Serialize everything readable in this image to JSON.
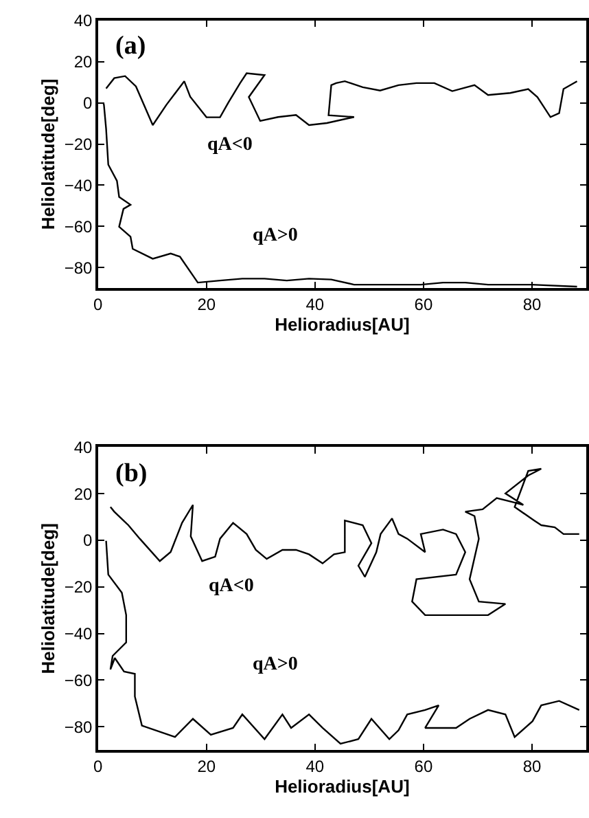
{
  "chart_data": [
    {
      "type": "line",
      "title": "(a)",
      "xlabel": "Helioradius[AU]",
      "ylabel": "Heliolatitude[deg]",
      "xlim": [
        0,
        90
      ],
      "ylim": [
        -90,
        40
      ],
      "xticks": [
        0,
        20,
        40,
        60,
        80
      ],
      "yticks": [
        {
          "value": -80,
          "label": "−80"
        },
        {
          "value": -60,
          "label": "−60"
        },
        {
          "value": -40,
          "label": "−40"
        },
        {
          "value": -20,
          "label": "−20"
        },
        0,
        20,
        40
      ],
      "legend": false,
      "marker": "none",
      "line_style": "solid",
      "series": [
        {
          "name": "qA<0",
          "color": "#000000",
          "x": [
            1.5,
            3,
            5,
            7,
            10.1,
            12.6,
            15.9,
            17,
            20,
            22.5,
            24,
            26.2,
            27.4,
            30.7,
            27.8,
            29.9,
            33.2,
            36.5,
            38.9,
            42.2,
            47.2,
            42.5,
            43,
            43.9,
            45.5,
            48.8,
            52,
            55.4,
            58.7,
            62,
            65.3,
            69.4,
            71.9,
            76,
            79.3,
            81,
            83.4,
            85,
            85.8,
            88.3
          ],
          "values": [
            7,
            12,
            13,
            8,
            -10.8,
            -1,
            10.5,
            3,
            -7,
            -7,
            0,
            9.6,
            14.4,
            13.5,
            2.8,
            -8.8,
            -6.9,
            -5.9,
            -10.8,
            -9.8,
            -6.9,
            -6,
            8.6,
            9.6,
            10.5,
            7.6,
            6,
            8.6,
            9.6,
            9.6,
            5.7,
            8.6,
            3.8,
            4.8,
            6.7,
            2.8,
            -6.9,
            -5,
            6.7,
            10.5
          ]
        },
        {
          "name": "qA>0",
          "color": "#000000",
          "x": [
            1,
            1.1,
            1.5,
            1.9,
            3.5,
            3.9,
            6,
            4.7,
            3.9,
            6,
            6.4,
            10.1,
            13.4,
            15.1,
            18.4,
            22.5,
            26.6,
            30.7,
            34.8,
            38.9,
            43,
            47.2,
            55.4,
            59.5,
            63.6,
            67.7,
            71.9,
            80,
            88.3
          ],
          "values": [
            0,
            -1,
            -12.7,
            -30,
            -37.9,
            -45.7,
            -49.5,
            -51.5,
            -60.2,
            -65,
            -70.9,
            -75.7,
            -73.2,
            -74.7,
            -87.3,
            -86.3,
            -85.4,
            -85.4,
            -86.3,
            -85.4,
            -85.8,
            -88.3,
            -88.3,
            -88.3,
            -87.3,
            -87.3,
            -88.3,
            -88.3,
            -89.3
          ]
        }
      ]
    },
    {
      "type": "line",
      "title": "(b)",
      "xlabel": "Helioradius[AU]",
      "ylabel": "Heliolatitude[deg]",
      "xlim": [
        0,
        90
      ],
      "ylim": [
        -90,
        40
      ],
      "xticks": [
        0,
        20,
        40,
        60,
        80
      ],
      "yticks": [
        {
          "value": -80,
          "label": "−80"
        },
        {
          "value": -60,
          "label": "−60"
        },
        {
          "value": -40,
          "label": "−40"
        },
        {
          "value": -20,
          "label": "−20"
        },
        0,
        20,
        40
      ],
      "legend": false,
      "marker": "none",
      "line_style": "solid",
      "series": [
        {
          "name": "qA<0",
          "color": "#000000",
          "x": [
            2.3,
            3,
            5.6,
            7.7,
            11.4,
            13.4,
            15.5,
            17.5,
            17.1,
            19.2,
            21.6,
            22.5,
            24.9,
            27.4,
            29.1,
            31.1,
            34,
            36.5,
            38.9,
            41.4,
            43.5,
            45.5,
            45.5,
            48.8,
            50.4,
            48,
            49.2,
            51.3,
            52.1,
            54.2,
            55.4,
            57,
            60.3,
            59.5,
            63.6,
            66,
            67.7,
            66,
            58.7,
            57.9,
            60.3,
            67.7,
            71.9,
            75.1,
            70.2,
            68.5,
            70.2,
            69.4,
            67.7,
            70.9,
            73.5,
            76.8,
            78.4,
            75.1,
            79.3,
            81.7,
            79.3,
            76.8,
            80.4,
            81.7,
            84.2,
            85.8,
            88.7
          ],
          "values": [
            14.3,
            12.3,
            6.5,
            0.7,
            -8.9,
            -5,
            7.5,
            15.2,
            1.7,
            -8.9,
            -7,
            0.7,
            7.5,
            2.7,
            -4.1,
            -8,
            -4.1,
            -4.1,
            -6,
            -9.9,
            -6,
            -5.1,
            8.5,
            6.5,
            -1.2,
            -10.9,
            -15.7,
            -5.1,
            2.7,
            9.4,
            2.7,
            0.7,
            -5.1,
            2.7,
            4.6,
            2.7,
            -5.1,
            -14.7,
            -16.7,
            -26.3,
            -32.1,
            -32.1,
            -32.1,
            -27.3,
            -26.3,
            -16.7,
            0.7,
            10.4,
            12.3,
            13.3,
            18.1,
            16.2,
            15.2,
            20.1,
            27.8,
            30.7,
            29.8,
            14.3,
            8.5,
            6.5,
            5.6,
            2.7,
            2.7
          ]
        },
        {
          "name": "qA>0",
          "color": "#000000",
          "x": [
            1.5,
            1.9,
            4.4,
            5.2,
            5.2,
            2.7,
            2.3,
            3.1,
            4.8,
            6.8,
            6.8,
            8.1,
            14.2,
            17.5,
            20.8,
            24.9,
            26.6,
            30.7,
            34,
            35.6,
            38.9,
            41.4,
            44.7,
            48,
            50.4,
            53.7,
            55.4,
            57,
            60.3,
            62.8,
            60.3,
            66,
            68.5,
            71.9,
            75.1,
            76.8,
            80.1,
            81.7,
            85,
            88.7
          ],
          "values": [
            -0.2,
            -14.7,
            -22.5,
            -32.1,
            -43.8,
            -49.6,
            -55.4,
            -50.5,
            -56.3,
            -57.3,
            -67,
            -79.5,
            -84.4,
            -76.6,
            -83.4,
            -80.5,
            -74.7,
            -85.3,
            -74.7,
            -80.5,
            -74.7,
            -80.5,
            -87.3,
            -85.3,
            -76.6,
            -85.3,
            -81.5,
            -74.7,
            -72.8,
            -70.8,
            -80.5,
            -80.5,
            -76.6,
            -72.8,
            -74.7,
            -84.4,
            -77.6,
            -70.8,
            -68.9,
            -72.8
          ]
        }
      ]
    }
  ]
}
